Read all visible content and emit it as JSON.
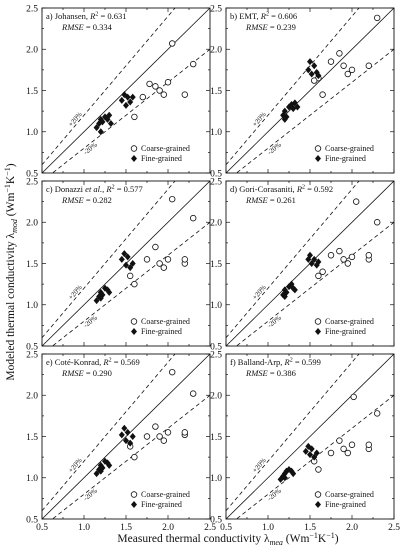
{
  "figure": {
    "ylabel_main": "Modeled thermal conductivity λ",
    "ylabel_sub": "mod",
    "ylabel_unit": " (Wm",
    "ylabel_unit_sup1": "−1",
    "ylabel_unit_mid": "K",
    "ylabel_unit_sup2": "−1",
    "ylabel_unit_end": ")",
    "xlabel_main": "Measured thermal conductivity λ",
    "xlabel_sub": "mea",
    "xlabel_unit": " (Wm",
    "xlabel_unit_sup1": "−1",
    "xlabel_unit_mid": "K",
    "xlabel_unit_sup2": "−1",
    "xlabel_unit_end": ")"
  },
  "legend": {
    "coarse": "Coarse-grained",
    "fine": "Fine-grained"
  },
  "bands": {
    "upper": "+20%",
    "lower": "-20%"
  },
  "chart_data": [
    {
      "type": "scatter",
      "panel_label": "a) Johansen, ",
      "r2_label": "R",
      "r2_sup": "2",
      "r2_value": " = 0.631",
      "rmse_label": "RMSE",
      "rmse_value": " = 0.334",
      "xlim": [
        0.5,
        2.5
      ],
      "ylim": [
        0.5,
        2.5
      ],
      "xticks": [
        "0.5",
        "1.0",
        "1.5",
        "2.0",
        "2.5"
      ],
      "yticks": [
        "0.5",
        "1.0",
        "1.5",
        "2.0",
        "2.5"
      ],
      "series": [
        {
          "name": "Coarse-grained",
          "marker": "open-circle",
          "points": [
            [
              1.7,
              1.42
            ],
            [
              1.78,
              1.58
            ],
            [
              1.9,
              1.5
            ],
            [
              1.95,
              1.45
            ],
            [
              2.0,
              1.6
            ],
            [
              2.05,
              2.07
            ],
            [
              2.2,
              1.45
            ],
            [
              2.3,
              1.82
            ],
            [
              1.85,
              1.55
            ],
            [
              1.6,
              1.18
            ]
          ]
        },
        {
          "name": "Fine-grained",
          "marker": "filled-diamond",
          "points": [
            [
              1.15,
              1.05
            ],
            [
              1.18,
              1.1
            ],
            [
              1.2,
              1.15
            ],
            [
              1.22,
              1.12
            ],
            [
              1.25,
              1.18
            ],
            [
              1.28,
              1.15
            ],
            [
              1.3,
              1.2
            ],
            [
              1.32,
              1.1
            ],
            [
              1.2,
              1.0
            ],
            [
              1.45,
              1.38
            ],
            [
              1.48,
              1.45
            ],
            [
              1.5,
              1.32
            ],
            [
              1.52,
              1.42
            ],
            [
              1.55,
              1.36
            ],
            [
              1.58,
              1.42
            ]
          ]
        }
      ]
    },
    {
      "type": "scatter",
      "panel_label": "b) EMT, ",
      "r2_label": "R",
      "r2_sup": "2",
      "r2_value": " = 0.606",
      "rmse_label": "RMSE",
      "rmse_value": " = 0.239",
      "xlim": [
        0.5,
        2.5
      ],
      "ylim": [
        0.5,
        2.5
      ],
      "xticks": [
        "0.5",
        "1.0",
        "1.5",
        "2.0",
        "2.5"
      ],
      "yticks": [
        "0.5",
        "1.0",
        "1.5",
        "2.0",
        "2.5"
      ],
      "series": [
        {
          "name": "Coarse-grained",
          "marker": "open-circle",
          "points": [
            [
              1.6,
              1.65
            ],
            [
              1.65,
              1.45
            ],
            [
              1.75,
              1.85
            ],
            [
              1.85,
              1.95
            ],
            [
              1.9,
              1.8
            ],
            [
              1.95,
              1.7
            ],
            [
              2.0,
              1.75
            ],
            [
              2.2,
              1.8
            ],
            [
              2.3,
              2.38
            ],
            [
              1.55,
              1.62
            ]
          ]
        },
        {
          "name": "Fine-grained",
          "marker": "filled-diamond",
          "points": [
            [
              1.18,
              1.2
            ],
            [
              1.2,
              1.25
            ],
            [
              1.22,
              1.18
            ],
            [
              1.25,
              1.3
            ],
            [
              1.28,
              1.33
            ],
            [
              1.3,
              1.28
            ],
            [
              1.32,
              1.35
            ],
            [
              1.35,
              1.3
            ],
            [
              1.2,
              1.15
            ],
            [
              1.48,
              1.75
            ],
            [
              1.5,
              1.85
            ],
            [
              1.52,
              1.7
            ],
            [
              1.55,
              1.8
            ],
            [
              1.58,
              1.72
            ],
            [
              1.6,
              1.68
            ]
          ]
        }
      ]
    },
    {
      "type": "scatter",
      "panel_label": "c) Donazzi ",
      "panel_label_it": "et al.",
      "panel_label_end": ", ",
      "r2_label": "R",
      "r2_sup": "2",
      "r2_value": " = 0.577",
      "rmse_label": "RMSE",
      "rmse_value": " = 0.282",
      "xlim": [
        0.5,
        2.5
      ],
      "ylim": [
        0.5,
        2.5
      ],
      "xticks": [
        "0.5",
        "1.0",
        "1.5",
        "2.0",
        "2.5"
      ],
      "yticks": [
        "0.5",
        "1.0",
        "1.5",
        "2.0",
        "2.5"
      ],
      "series": [
        {
          "name": "Coarse-grained",
          "marker": "open-circle",
          "points": [
            [
              1.55,
              1.35
            ],
            [
              1.6,
              1.25
            ],
            [
              1.75,
              1.55
            ],
            [
              1.85,
              1.7
            ],
            [
              1.9,
              1.5
            ],
            [
              1.95,
              1.45
            ],
            [
              2.0,
              1.55
            ],
            [
              2.2,
              1.5
            ],
            [
              2.2,
              1.55
            ],
            [
              2.3,
              2.05
            ],
            [
              2.05,
              2.28
            ]
          ]
        },
        {
          "name": "Fine-grained",
          "marker": "filled-diamond",
          "points": [
            [
              1.15,
              1.05
            ],
            [
              1.18,
              1.1
            ],
            [
              1.2,
              1.15
            ],
            [
              1.22,
              1.12
            ],
            [
              1.25,
              1.2
            ],
            [
              1.28,
              1.18
            ],
            [
              1.3,
              1.15
            ],
            [
              1.2,
              1.08
            ],
            [
              1.45,
              1.55
            ],
            [
              1.48,
              1.62
            ],
            [
              1.5,
              1.48
            ],
            [
              1.52,
              1.58
            ],
            [
              1.55,
              1.45
            ],
            [
              1.58,
              1.5
            ]
          ]
        }
      ]
    },
    {
      "type": "scatter",
      "panel_label": "d) Gori-Corasaniti, ",
      "r2_label": "R",
      "r2_sup": "2",
      "r2_value": " = 0.592",
      "rmse_label": "RMSE",
      "rmse_value": " = 0.261",
      "xlim": [
        0.5,
        2.5
      ],
      "ylim": [
        0.5,
        2.5
      ],
      "xticks": [
        "0.5",
        "1.0",
        "1.5",
        "2.0",
        "2.5"
      ],
      "yticks": [
        "0.5",
        "1.0",
        "1.5",
        "2.0",
        "2.5"
      ],
      "series": [
        {
          "name": "Coarse-grained",
          "marker": "open-circle",
          "points": [
            [
              1.6,
              1.35
            ],
            [
              1.75,
              1.6
            ],
            [
              1.85,
              1.65
            ],
            [
              1.9,
              1.55
            ],
            [
              1.95,
              1.5
            ],
            [
              2.0,
              1.58
            ],
            [
              2.2,
              1.55
            ],
            [
              2.2,
              1.6
            ],
            [
              2.3,
              2.0
            ],
            [
              2.05,
              2.25
            ],
            [
              1.65,
              1.4
            ]
          ]
        },
        {
          "name": "Fine-grained",
          "marker": "filled-diamond",
          "points": [
            [
              1.18,
              1.12
            ],
            [
              1.2,
              1.18
            ],
            [
              1.22,
              1.15
            ],
            [
              1.25,
              1.22
            ],
            [
              1.28,
              1.25
            ],
            [
              1.3,
              1.2
            ],
            [
              1.32,
              1.18
            ],
            [
              1.2,
              1.1
            ],
            [
              1.48,
              1.55
            ],
            [
              1.5,
              1.6
            ],
            [
              1.52,
              1.5
            ],
            [
              1.55,
              1.55
            ],
            [
              1.58,
              1.48
            ],
            [
              1.6,
              1.52
            ]
          ]
        }
      ]
    },
    {
      "type": "scatter",
      "panel_label": "e) Coté-Konrad, ",
      "r2_label": "R",
      "r2_sup": "2",
      "r2_value": " = 0.569",
      "rmse_label": "RMSE",
      "rmse_value": " = 0.290",
      "xlim": [
        0.5,
        2.5
      ],
      "ylim": [
        0.5,
        2.5
      ],
      "xticks": [
        "0.5",
        "1.0",
        "1.5",
        "2.0",
        "2.5"
      ],
      "yticks": [
        "0.5",
        "1.0",
        "1.5",
        "2.0",
        "2.5"
      ],
      "series": [
        {
          "name": "Coarse-grained",
          "marker": "open-circle",
          "points": [
            [
              1.55,
              1.38
            ],
            [
              1.6,
              1.25
            ],
            [
              1.75,
              1.5
            ],
            [
              1.85,
              1.62
            ],
            [
              1.9,
              1.5
            ],
            [
              1.95,
              1.45
            ],
            [
              2.0,
              1.55
            ],
            [
              2.2,
              1.52
            ],
            [
              2.2,
              1.55
            ],
            [
              2.3,
              2.02
            ],
            [
              2.05,
              2.28
            ]
          ]
        },
        {
          "name": "Fine-grained",
          "marker": "filled-diamond",
          "points": [
            [
              1.15,
              1.05
            ],
            [
              1.18,
              1.1
            ],
            [
              1.2,
              1.15
            ],
            [
              1.22,
              1.12
            ],
            [
              1.25,
              1.2
            ],
            [
              1.28,
              1.18
            ],
            [
              1.3,
              1.15
            ],
            [
              1.2,
              1.08
            ],
            [
              1.45,
              1.52
            ],
            [
              1.48,
              1.6
            ],
            [
              1.5,
              1.45
            ],
            [
              1.52,
              1.55
            ],
            [
              1.55,
              1.42
            ],
            [
              1.58,
              1.5
            ]
          ]
        }
      ]
    },
    {
      "type": "scatter",
      "panel_label": "f) Balland-Arp, ",
      "r2_label": "R",
      "r2_sup": "2",
      "r2_value": " = 0.599",
      "rmse_label": "RMSE",
      "rmse_value": " = 0.386",
      "xlim": [
        0.5,
        2.5
      ],
      "ylim": [
        0.5,
        2.5
      ],
      "xticks": [
        "0.5",
        "1.0",
        "1.5",
        "2.0",
        "2.5"
      ],
      "yticks": [
        "0.5",
        "1.0",
        "1.5",
        "2.0",
        "2.5"
      ],
      "series": [
        {
          "name": "Coarse-grained",
          "marker": "open-circle",
          "points": [
            [
              1.55,
              1.2
            ],
            [
              1.6,
              1.1
            ],
            [
              1.75,
              1.3
            ],
            [
              1.85,
              1.45
            ],
            [
              1.9,
              1.35
            ],
            [
              1.95,
              1.3
            ],
            [
              2.0,
              1.4
            ],
            [
              2.2,
              1.35
            ],
            [
              2.2,
              1.4
            ],
            [
              2.3,
              1.78
            ],
            [
              2.02,
              1.98
            ]
          ]
        },
        {
          "name": "Fine-grained",
          "marker": "filled-diamond",
          "points": [
            [
              1.15,
              0.98
            ],
            [
              1.18,
              1.02
            ],
            [
              1.2,
              1.05
            ],
            [
              1.22,
              1.08
            ],
            [
              1.25,
              1.1
            ],
            [
              1.28,
              1.08
            ],
            [
              1.3,
              1.05
            ],
            [
              1.2,
              1.0
            ],
            [
              1.45,
              1.32
            ],
            [
              1.48,
              1.38
            ],
            [
              1.5,
              1.28
            ],
            [
              1.52,
              1.35
            ],
            [
              1.55,
              1.25
            ],
            [
              1.58,
              1.3
            ]
          ]
        }
      ]
    }
  ]
}
